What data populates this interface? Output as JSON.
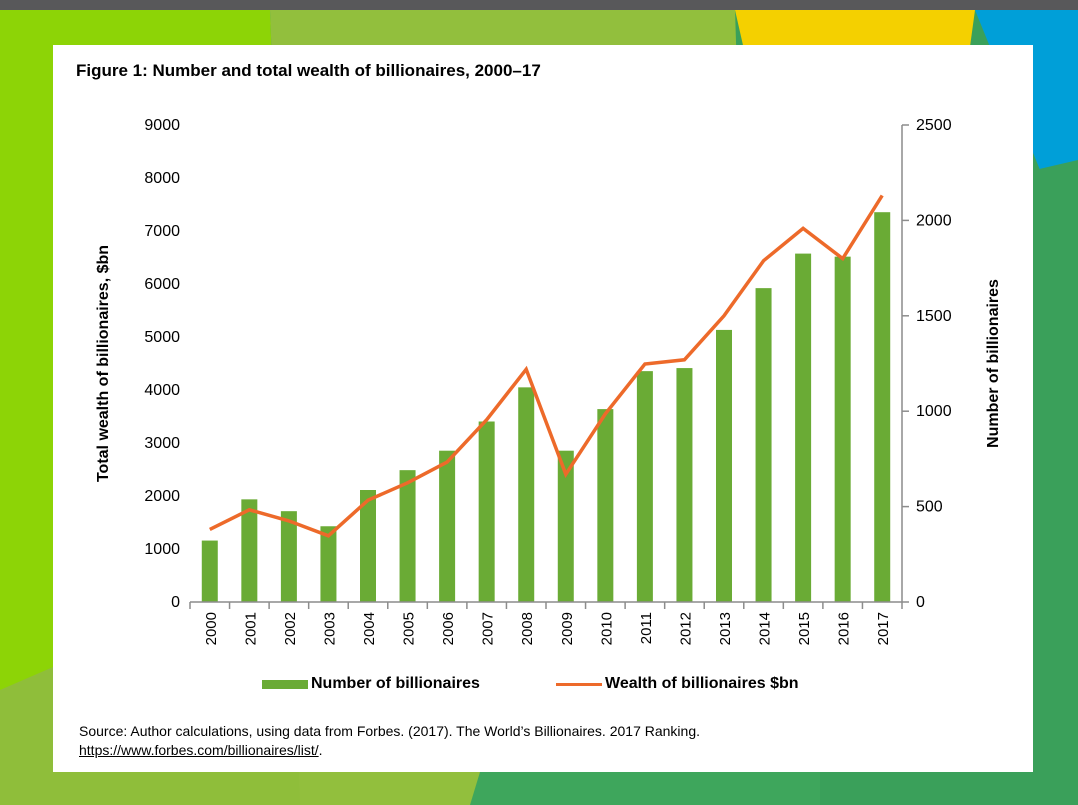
{
  "figure": {
    "title": "Figure 1: Number and total wealth of billionaires, 2000–17",
    "source_text": "Source: Author calculations, using data from Forbes. (2017). The World’s Billionaires. 2017 Ranking.",
    "source_link": "https://www.forbes.com/billionaires/list/",
    "source_link_suffix": "."
  },
  "colors": {
    "bar": "#6aab35",
    "line": "#ed6a2a",
    "axis": "#8c8c8c"
  },
  "legend": {
    "bars": "Number of billionaires",
    "line": "Wealth of billionaires $bn"
  },
  "chart_data": {
    "type": "bar",
    "title": "Figure 1: Number and total wealth of billionaires, 2000–17",
    "categories": [
      "2000",
      "2001",
      "2002",
      "2003",
      "2004",
      "2005",
      "2006",
      "2007",
      "2008",
      "2009",
      "2010",
      "2011",
      "2012",
      "2013",
      "2014",
      "2015",
      "2016",
      "2017"
    ],
    "series": [
      {
        "name": "Number of billionaires",
        "type": "bar",
        "axis": "right",
        "values": [
          322,
          538,
          476,
          397,
          587,
          691,
          793,
          946,
          1125,
          793,
          1011,
          1210,
          1226,
          1426,
          1645,
          1826,
          1810,
          2043
        ]
      },
      {
        "name": "Wealth of billionaires $bn",
        "type": "line",
        "axis": "left",
        "values": [
          1370,
          1740,
          1530,
          1250,
          1920,
          2250,
          2640,
          3440,
          4390,
          2410,
          3550,
          4490,
          4570,
          5400,
          6440,
          7050,
          6480,
          7670
        ]
      }
    ],
    "ylabel": "Total wealth of billionaires, $bn",
    "ylim": [
      0,
      9000
    ],
    "yticks": [
      "0",
      "1000",
      "2000",
      "3000",
      "4000",
      "5000",
      "6000",
      "7000",
      "8000",
      "9000"
    ],
    "y2label": "Number of billionaires",
    "y2lim": [
      0,
      2500
    ],
    "y2ticks": [
      "0",
      "500",
      "1000",
      "1500",
      "2000",
      "2500"
    ],
    "xlabel": ""
  }
}
